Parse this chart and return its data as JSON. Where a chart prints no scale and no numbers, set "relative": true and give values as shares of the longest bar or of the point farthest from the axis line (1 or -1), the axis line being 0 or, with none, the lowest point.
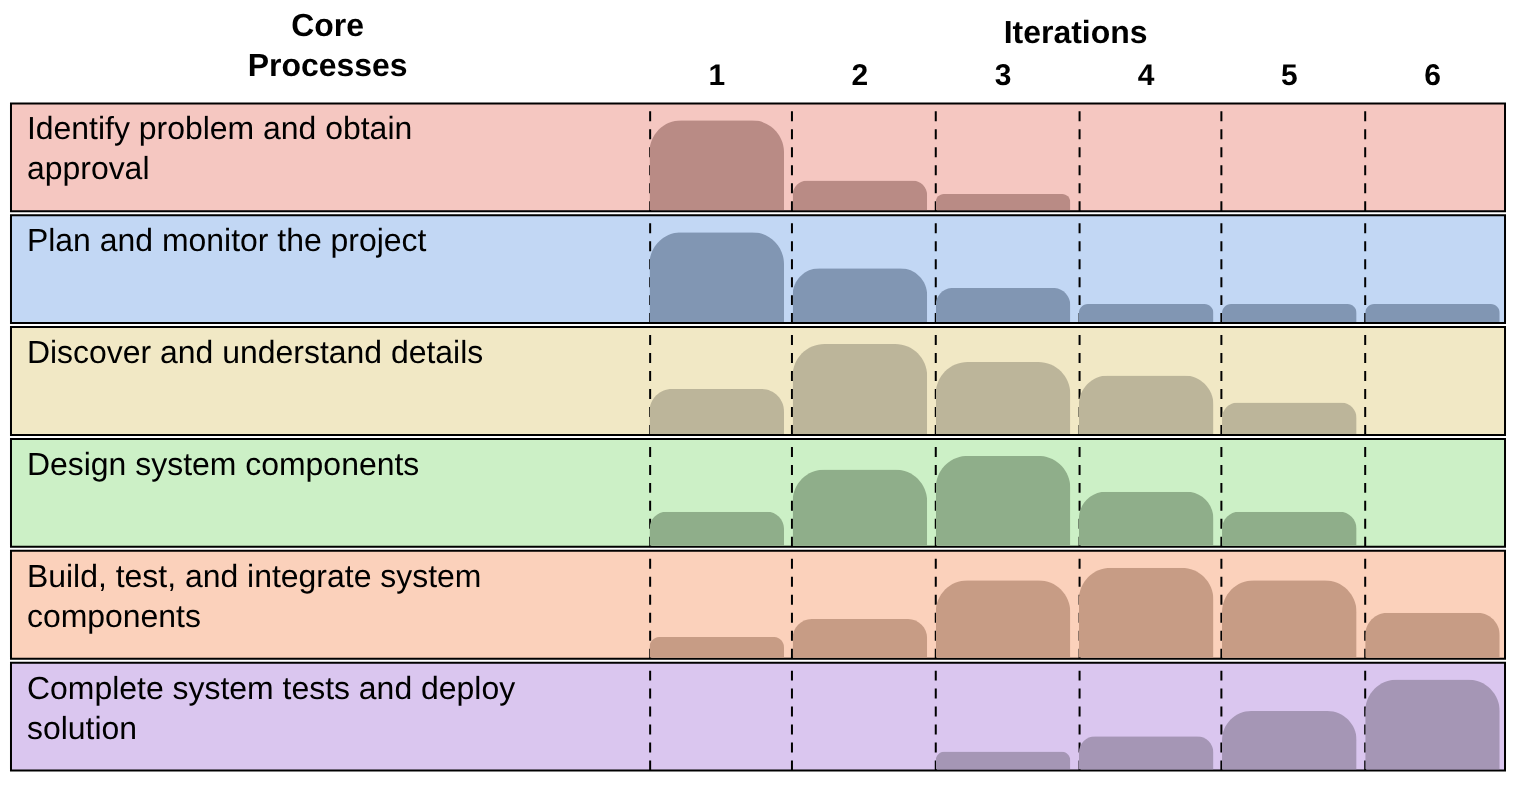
{
  "chart_data": [
    {
      "type": "bar",
      "annotations": [
        "Core Processes"
      ],
      "ylabel": "Identify problem and obtain approval",
      "xlabel": "Iterations",
      "categories": [
        "1",
        "2",
        "3",
        "4",
        "5",
        "6"
      ],
      "values": [
        1,
        0.33,
        0.18,
        0,
        0,
        0
      ],
      "color": "#b98b85",
      "relative": true,
      "grid": "x",
      "tick_labels": "x"
    },
    {
      "type": "bar",
      "ylabel": "Plan and monitor the project",
      "categories": [
        "1",
        "2",
        "3",
        "4",
        "5",
        "6"
      ],
      "values": [
        1,
        0.6,
        0.38,
        0.2,
        0.2,
        0.2
      ],
      "color": "#8196b3",
      "relative": true,
      "grid": "x",
      "tick_labels": false
    },
    {
      "type": "bar",
      "ylabel": "Discover and understand details",
      "categories": [
        "1",
        "2",
        "3",
        "4",
        "5",
        "6"
      ],
      "values": [
        0.5,
        1,
        0.8,
        0.65,
        0.35,
        0
      ],
      "color": "#bcb59a",
      "relative": true,
      "grid": "x",
      "tick_labels": false
    },
    {
      "type": "bar",
      "ylabel": "Design system components",
      "categories": [
        "1",
        "2",
        "3",
        "4",
        "5",
        "6"
      ],
      "values": [
        0.38,
        0.85,
        1,
        0.6,
        0.38,
        0
      ],
      "color": "#8fae8a",
      "relative": true,
      "grid": "x",
      "tick_labels": false
    },
    {
      "type": "bar",
      "ylabel": "Build, test, and integrate system components",
      "categories": [
        "1",
        "2",
        "3",
        "4",
        "5",
        "6"
      ],
      "values": [
        0.23,
        0.43,
        0.86,
        1,
        0.86,
        0.5
      ],
      "color": "#c79c85",
      "relative": true,
      "grid": "x",
      "tick_labels": false
    },
    {
      "type": "bar",
      "ylabel": "Complete system tests and deploy solution",
      "categories": [
        "1",
        "2",
        "3",
        "4",
        "5",
        "6"
      ],
      "values": [
        0,
        0,
        0.2,
        0.37,
        0.65,
        1
      ],
      "color": "#a596b5",
      "relative": true,
      "grid": "x",
      "tick_labels": false
    }
  ]
}
